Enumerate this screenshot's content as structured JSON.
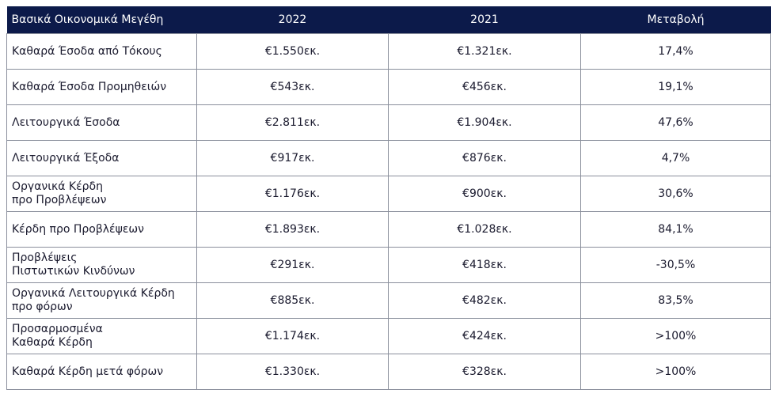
{
  "table": {
    "header": [
      "Βασικά Οικονομικά Μεγέθη",
      "2022",
      "2021",
      "Μεταβολή"
    ],
    "rows": [
      [
        "Καθαρά Έσοδα από Τόκους",
        "€1.550εκ.",
        "€1.321εκ.",
        "17,4%"
      ],
      [
        "Καθαρά Έσοδα Προμηθειών",
        "€543εκ.",
        "€456εκ.",
        "19,1%"
      ],
      [
        "Λειτουργικά Έσοδα",
        "€2.811εκ.",
        "€1.904εκ.",
        "47,6%"
      ],
      [
        "Λειτουργικά Έξοδα",
        "€917εκ.",
        "€876εκ.",
        "4,7%"
      ],
      [
        "Οργανικά Κέρδη\nπρο Προβλέψεων",
        "€1.176εκ.",
        "€900εκ.",
        "30,6%"
      ],
      [
        "Κέρδη προ Προβλέψεων",
        "€1.893εκ.",
        "€1.028εκ.",
        "84,1%"
      ],
      [
        "Προβλέψεις\nΠιστωτικών Κινδύνων",
        "€291εκ.",
        "€418εκ.",
        "-30,5%"
      ],
      [
        "Οργανικά Λειτουργικά Κέρδη\nπρο φόρων",
        "€885εκ.",
        "€482εκ.",
        "83,5%"
      ],
      [
        "Προσαρμοσμένα\nΚαθαρά Κέρδη",
        "€1.174εκ.",
        "€424εκ.",
        ">100%"
      ],
      [
        "Καθαρά Κέρδη μετά φόρων",
        "€1.330εκ.",
        "€328εκ.",
        ">100%"
      ]
    ]
  }
}
